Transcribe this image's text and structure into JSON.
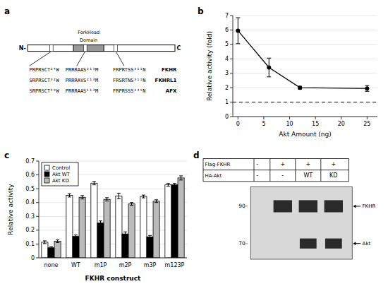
{
  "chart_data": [
    {
      "type": "diagram",
      "title": "a",
      "annotations": [
        "N-",
        "C",
        "ForkHead",
        "Domain",
        "PRPRSCT²⁴W",
        "SRPRSCT³²W",
        "SRPRSCT⁴⁸W",
        "PRRRAAS²¹³M",
        "PRRRAVS²¹³M",
        "PRRRAAS¹¹³M",
        "FRPRTSS³¹¹N",
        "FRSRTNS³¹¹N",
        "FRPRSSS²³⁹N",
        "FKHR",
        "FKHRL1",
        "AFX"
      ]
    },
    {
      "type": "line",
      "title": "b",
      "x": [
        0,
        6,
        12,
        25
      ],
      "series": [
        {
          "values": [
            5.95,
            3.4,
            2.0,
            1.95
          ],
          "errors": [
            0.9,
            0.65,
            0.1,
            0.2
          ],
          "color": "black",
          "marker": "circle",
          "line_style": "solid"
        }
      ],
      "reference_y": 1.0,
      "xlabel": "Akt Amount (ng)",
      "ylabel": "Relative activity (fold)",
      "xlim": [
        -1,
        27
      ],
      "ylim": [
        0,
        7
      ],
      "xticks": [
        0,
        5,
        10,
        15,
        20,
        25
      ],
      "yticks": [
        0,
        1,
        2,
        3,
        4,
        5,
        6,
        7
      ]
    },
    {
      "type": "bar",
      "title": "c",
      "categories": [
        "none",
        "WT",
        "m1P",
        "m2P",
        "m3P",
        "m123P"
      ],
      "series": [
        {
          "name": "Control",
          "color": "#ffffff",
          "values": [
            0.113,
            0.452,
            0.54,
            0.448,
            0.444,
            0.528
          ],
          "errors": [
            0.01,
            0.012,
            0.012,
            0.02,
            0.01,
            0.01
          ]
        },
        {
          "name": "Akt WT",
          "color": "#000000",
          "values": [
            0.073,
            0.155,
            0.252,
            0.173,
            0.152,
            0.528
          ],
          "errors": [
            0.008,
            0.01,
            0.015,
            0.015,
            0.01,
            0.01
          ]
        },
        {
          "name": "Akt KD",
          "color": "#bbbbbb",
          "values": [
            0.12,
            0.438,
            0.423,
            0.39,
            0.41,
            0.578
          ],
          "errors": [
            0.01,
            0.012,
            0.012,
            0.01,
            0.01,
            0.015
          ]
        }
      ],
      "xlabel": "FKHR construct",
      "ylabel": "Relative activity",
      "ylim": [
        0,
        0.7
      ],
      "yticks": [
        0,
        0.1,
        0.2,
        0.3,
        0.4,
        0.5,
        0.6,
        0.7
      ],
      "legend": "upper left"
    },
    {
      "type": "diagram",
      "title": "d",
      "annotations": [
        "Flag-FKHR",
        "HA-Akt",
        "-",
        "+",
        "+",
        "+",
        "-",
        "-",
        "WT",
        "KD",
        "90–",
        "70–",
        "FKHR",
        "Akt"
      ]
    }
  ]
}
